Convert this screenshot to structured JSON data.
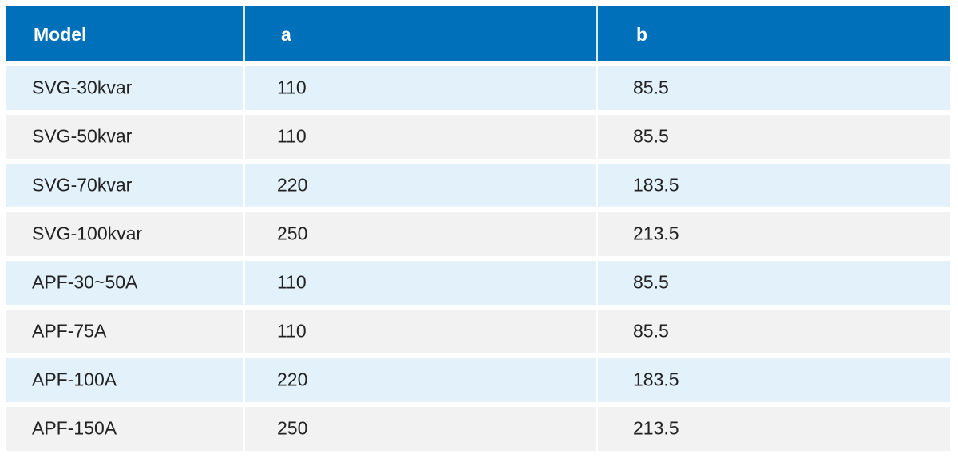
{
  "table": {
    "header": [
      "Model",
      "a",
      "b"
    ],
    "rows": [
      [
        "SVG-30kvar",
        "110",
        "85.5"
      ],
      [
        "SVG-50kvar",
        "110",
        "85.5"
      ],
      [
        "SVG-70kvar",
        "220",
        "183.5"
      ],
      [
        "SVG-100kvar",
        "250",
        "213.5"
      ],
      [
        "APF-30~50A",
        "110",
        "85.5"
      ],
      [
        "APF-75A",
        "110",
        "85.5"
      ],
      [
        "APF-100A",
        "220",
        "183.5"
      ],
      [
        "APF-150A",
        "250",
        "213.5"
      ]
    ]
  }
}
